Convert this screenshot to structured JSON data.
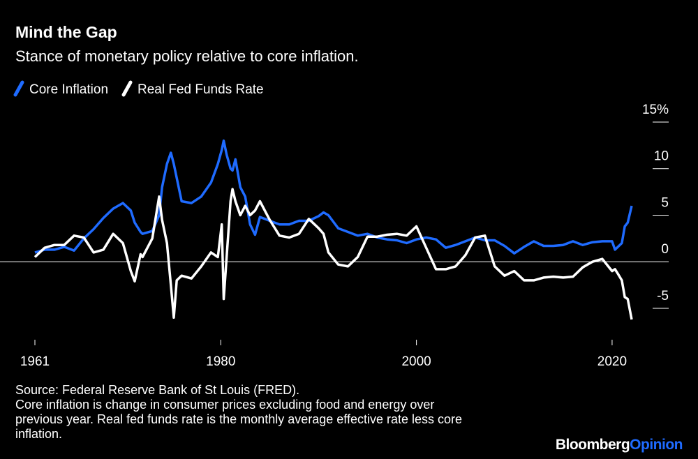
{
  "chart_data": {
    "type": "line",
    "title": "Mind the Gap",
    "subtitle": "Stance of monetary policy relative to core inflation.",
    "x": [
      1961,
      1962,
      1963,
      1964,
      1965,
      1966,
      1967,
      1968,
      1969,
      1970,
      1970.8,
      1971.2,
      1971.8,
      1972,
      1973,
      1973.7,
      1974,
      1974.5,
      1974.9,
      1975.2,
      1975.5,
      1976,
      1977,
      1978,
      1979,
      1979.7,
      1980.1,
      1980.3,
      1980.6,
      1981,
      1981.2,
      1981.5,
      1982,
      1982.5,
      1983,
      1983.5,
      1984,
      1985,
      1986,
      1987,
      1988,
      1989,
      1990,
      1990.5,
      1991,
      1992,
      1993,
      1994,
      1995,
      1996,
      1997,
      1998,
      1999,
      2000,
      2001,
      2002,
      2003,
      2004,
      2005,
      2006,
      2007,
      2008,
      2009,
      2010,
      2011,
      2012,
      2013,
      2014,
      2015,
      2016,
      2017,
      2018,
      2019,
      2020,
      2020.3,
      2020.6,
      2021,
      2021.3,
      2021.6,
      2022
    ],
    "series": [
      {
        "name": "Core Inflation",
        "color": "#1f6bff",
        "values": [
          1.0,
          1.3,
          1.3,
          1.6,
          1.2,
          2.5,
          3.5,
          4.7,
          5.7,
          6.3,
          5.5,
          4.2,
          3.2,
          3.0,
          3.3,
          5.0,
          8.0,
          10.5,
          11.7,
          10.5,
          9.0,
          6.5,
          6.3,
          7.0,
          8.5,
          10.5,
          12.0,
          13.0,
          11.5,
          10.0,
          9.8,
          11.0,
          8.0,
          7.0,
          4.0,
          2.9,
          4.8,
          4.4,
          4.0,
          4.0,
          4.4,
          4.4,
          4.9,
          5.3,
          5.0,
          3.6,
          3.2,
          2.8,
          3.0,
          2.6,
          2.4,
          2.3,
          2.0,
          2.4,
          2.6,
          2.4,
          1.5,
          1.8,
          2.2,
          2.6,
          2.3,
          2.3,
          1.7,
          0.9,
          1.6,
          2.2,
          1.7,
          1.7,
          1.8,
          2.2,
          1.8,
          2.1,
          2.2,
          2.2,
          1.3,
          1.6,
          2.0,
          3.8,
          4.2,
          6.0
        ]
      },
      {
        "name": "Real Fed Funds Rate",
        "color": "#ffffff",
        "values": [
          0.5,
          1.5,
          1.8,
          1.8,
          2.8,
          2.6,
          1.0,
          1.3,
          3.0,
          2.0,
          -1.0,
          -2.1,
          0.8,
          0.5,
          2.5,
          7.0,
          4.5,
          2.0,
          -2.5,
          -6.0,
          -2.0,
          -1.5,
          -1.8,
          -0.5,
          1.0,
          0.5,
          4.0,
          -4.0,
          0.5,
          6.5,
          7.8,
          6.5,
          5.0,
          6.0,
          5.0,
          5.5,
          6.5,
          4.5,
          2.8,
          2.6,
          3.0,
          4.6,
          3.6,
          3.0,
          1.0,
          -0.3,
          -0.5,
          0.5,
          2.7,
          2.7,
          2.9,
          3.0,
          2.8,
          3.8,
          1.5,
          -0.8,
          -0.8,
          -0.5,
          0.7,
          2.6,
          2.8,
          -0.5,
          -1.5,
          -1.0,
          -2.0,
          -2.0,
          -1.7,
          -1.6,
          -1.7,
          -1.6,
          -0.6,
          0.0,
          0.3,
          -1.0,
          -0.8,
          -1.3,
          -2.0,
          -3.8,
          -4.0,
          -6.2
        ]
      }
    ],
    "xlim": [
      1961,
      2025
    ],
    "xticks": [
      1961,
      1980,
      2000,
      2020
    ],
    "ylim": [
      -8,
      15
    ],
    "yticks": [
      {
        "value": 15,
        "label": "15%"
      },
      10,
      5,
      0,
      -5
    ],
    "notes": [
      "Source: Federal Reserve Bank of St Louis (FRED).",
      "Core inflation is change in consumer prices excluding food and energy over",
      "previous year. Real fed funds rate is the monthly average effective rate less core",
      "inflation."
    ],
    "brand": [
      "Bloomberg",
      "Opinion"
    ]
  }
}
